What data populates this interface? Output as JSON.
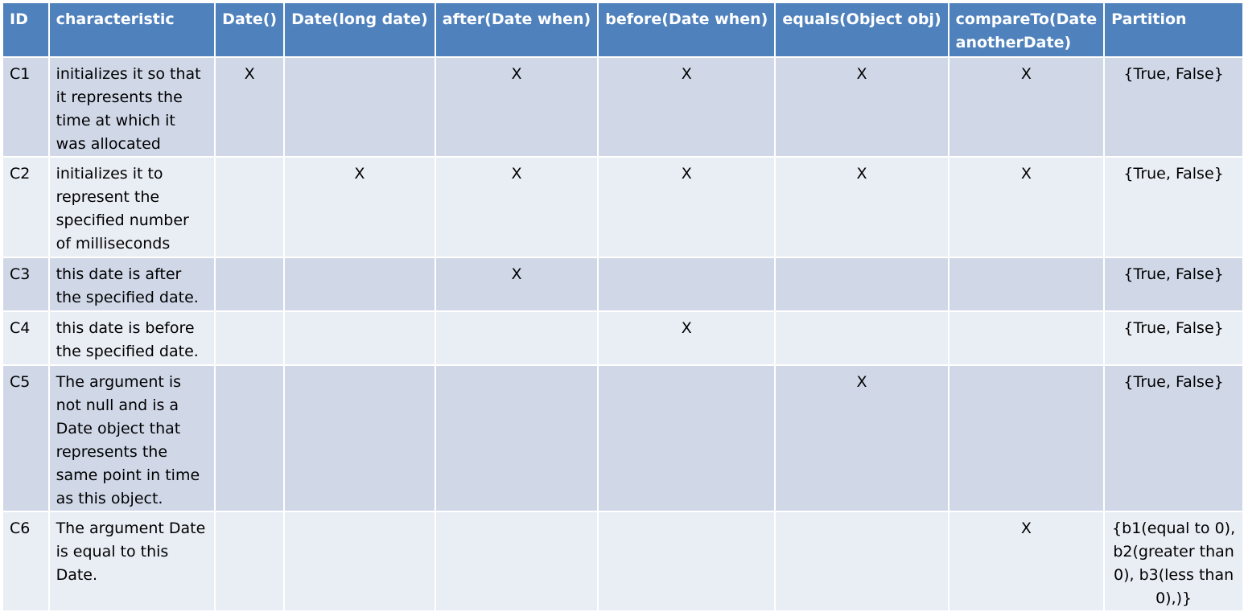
{
  "table": {
    "headers": [
      "ID",
      "characteristic",
      "Date()",
      "Date(long date)",
      "after(Date when)",
      "before(Date when)",
      "equals(Object obj)",
      "compareTo(Date anotherDate)",
      "Partition"
    ],
    "rows": [
      {
        "id": "C1",
        "characteristic": "initializes it so that it represents the time at which it was allocated",
        "date": "X",
        "date_long": "",
        "after": "X",
        "before": "X",
        "equals": "X",
        "compare_to": "X",
        "partition": "{True, False}"
      },
      {
        "id": "C2",
        "characteristic": "initializes it to represent the specified number of milliseconds",
        "date": "",
        "date_long": "X",
        "after": "X",
        "before": "X",
        "equals": "X",
        "compare_to": "X",
        "partition": "{True, False}"
      },
      {
        "id": "C3",
        "characteristic": "this date is after the specified date.",
        "date": "",
        "date_long": "",
        "after": "X",
        "before": "",
        "equals": "",
        "compare_to": "",
        "partition": "{True, False}"
      },
      {
        "id": "C4",
        "characteristic": "this date is before the specified date.",
        "date": "",
        "date_long": "",
        "after": "",
        "before": "X",
        "equals": "",
        "compare_to": "",
        "partition": "{True, False}"
      },
      {
        "id": "C5",
        "characteristic": "The argument is not null and is a Date object that represents the same point in time as this object.",
        "date": "",
        "date_long": "",
        "after": "",
        "before": "",
        "equals": "X",
        "compare_to": "",
        "partition": "{True, False}"
      },
      {
        "id": "C6",
        "characteristic": "The argument Date is equal to this Date.",
        "date": "",
        "date_long": "",
        "after": "",
        "before": "",
        "equals": "",
        "compare_to": "X",
        "partition": "{b1(equal to 0), b2(greater than 0), b3(less than 0),)}"
      }
    ]
  },
  "colors": {
    "header_bg": "#4f81bd",
    "header_text": "#ffffff",
    "row_odd_bg": "#d0d8e8",
    "row_even_bg": "#e9edf4",
    "grid_line": "#ffffff"
  }
}
